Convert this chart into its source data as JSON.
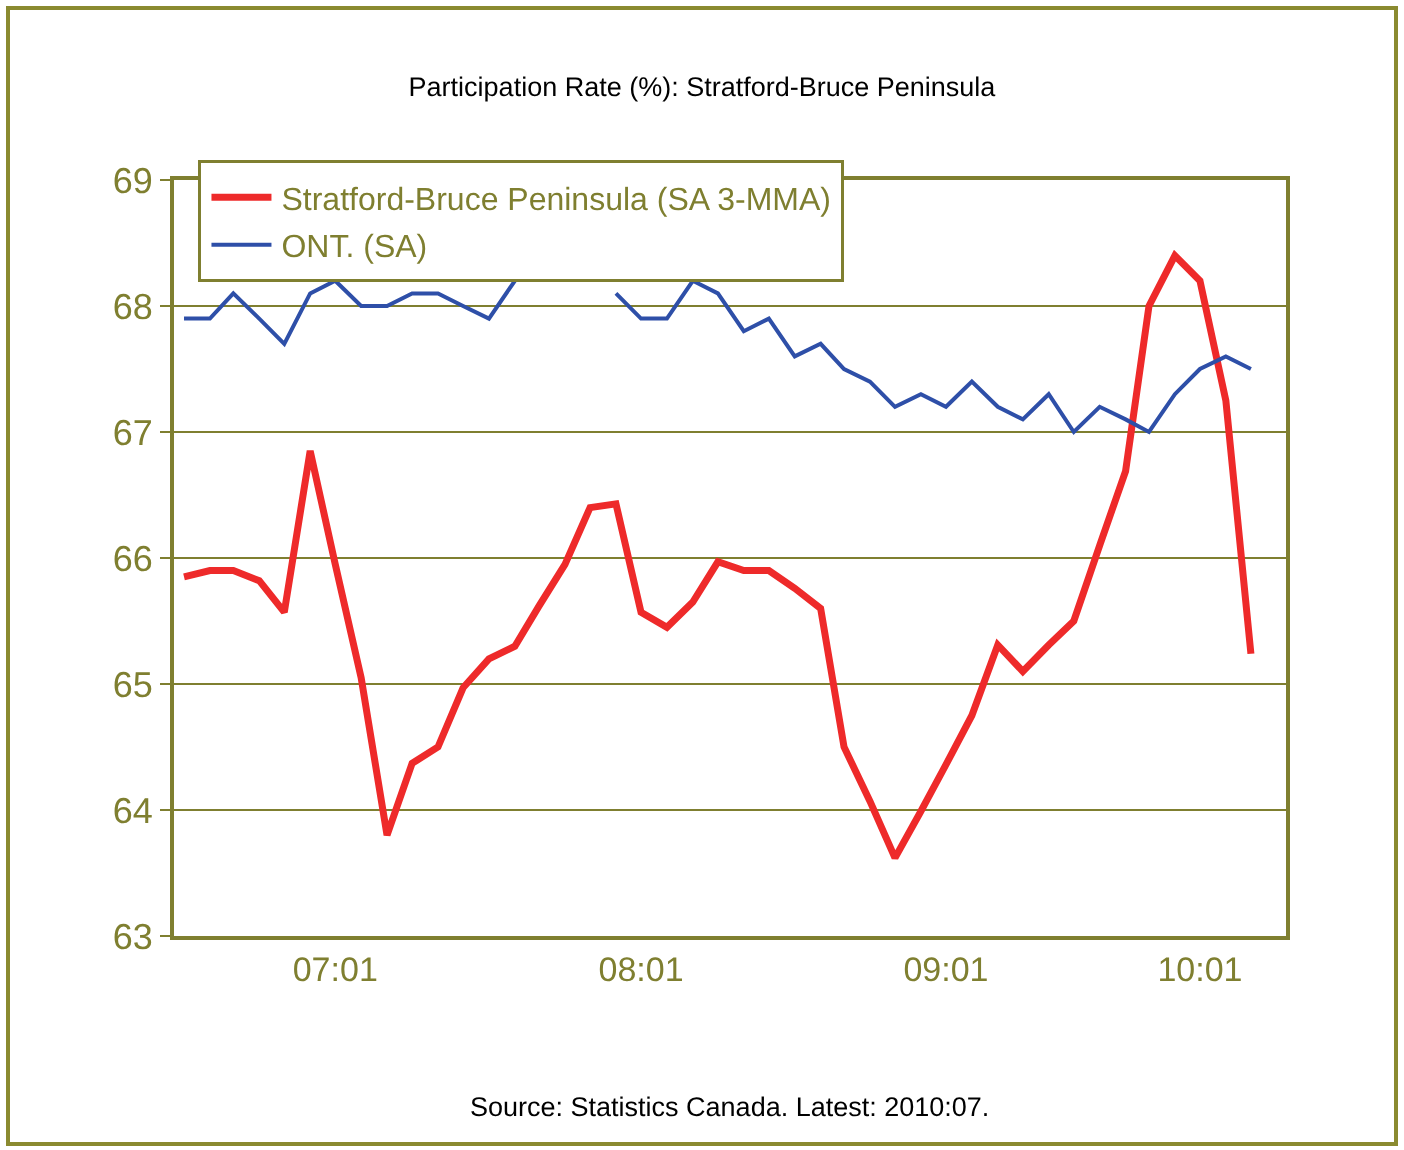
{
  "chart_data": {
    "type": "line",
    "title": "Participation Rate (%): Stratford-Bruce Peninsula",
    "x": [
      "2007-01",
      "2007-02",
      "2007-03",
      "2007-04",
      "2007-05",
      "2007-06",
      "2007-07",
      "2007-08",
      "2007-09",
      "2007-10",
      "2007-11",
      "2007-12",
      "2008-01",
      "2008-02",
      "2008-03",
      "2008-04",
      "2008-05",
      "2008-06",
      "2008-07",
      "2008-08",
      "2008-09",
      "2008-10",
      "2008-11",
      "2008-12",
      "2009-01",
      "2009-02",
      "2009-03",
      "2009-04",
      "2009-05",
      "2009-06",
      "2009-07",
      "2009-08",
      "2009-09",
      "2009-10",
      "2009-11",
      "2009-12",
      "2010-01",
      "2010-02",
      "2010-03",
      "2010-04",
      "2010-05",
      "2010-06",
      "2010-07"
    ],
    "series": [
      {
        "name": "Stratford-Bruce Peninsula (SA 3-MMA)",
        "color": "#ee2a2a",
        "values": [
          65.85,
          65.9,
          65.9,
          65.82,
          65.57,
          66.85,
          65.95,
          65.05,
          63.8,
          64.37,
          64.5,
          64.97,
          65.2,
          65.3,
          65.62,
          65.95,
          66.4,
          66.43,
          65.57,
          65.45,
          65.65,
          65.97,
          65.9,
          65.9,
          65.76,
          65.6,
          64.5,
          64.07,
          63.62,
          63.99,
          64.36,
          64.75,
          65.31,
          65.1,
          65.31,
          65.5,
          66.1,
          66.69,
          68.0,
          68.4,
          68.2,
          67.25,
          65.24
        ]
      },
      {
        "name": "ONT. (SA)",
        "color": "#2e4fa8",
        "values": [
          67.9,
          67.9,
          68.1,
          67.9,
          67.7,
          68.1,
          68.2,
          68.0,
          68.0,
          68.1,
          68.1,
          68.0,
          67.9,
          68.2,
          null,
          null,
          null,
          68.1,
          67.9,
          67.9,
          68.2,
          68.1,
          67.8,
          67.9,
          67.6,
          67.7,
          67.5,
          67.4,
          67.2,
          67.3,
          67.2,
          67.4,
          67.2,
          67.1,
          67.3,
          67.0,
          67.2,
          67.1,
          67.0,
          67.3,
          67.5,
          67.6,
          67.5
        ]
      }
    ],
    "xlim": [
      "2006-12-20",
      "2010-08-12"
    ],
    "xticks": [
      {
        "value": "2007-07-01",
        "label": "07:01"
      },
      {
        "value": "2008-07-01",
        "label": "08:01"
      },
      {
        "value": "2009-07-01",
        "label": "09:01"
      },
      {
        "value": "2010-05-01",
        "label": "10:01"
      }
    ],
    "ylim": [
      63,
      69
    ],
    "yticks": [
      63,
      64,
      65,
      66,
      67,
      68,
      69
    ],
    "grid": "y",
    "legend": "top left",
    "marker": "none",
    "line_style": "solid",
    "annotations": [
      "Source: Statistics Canada. Latest: 2010:07."
    ]
  }
}
